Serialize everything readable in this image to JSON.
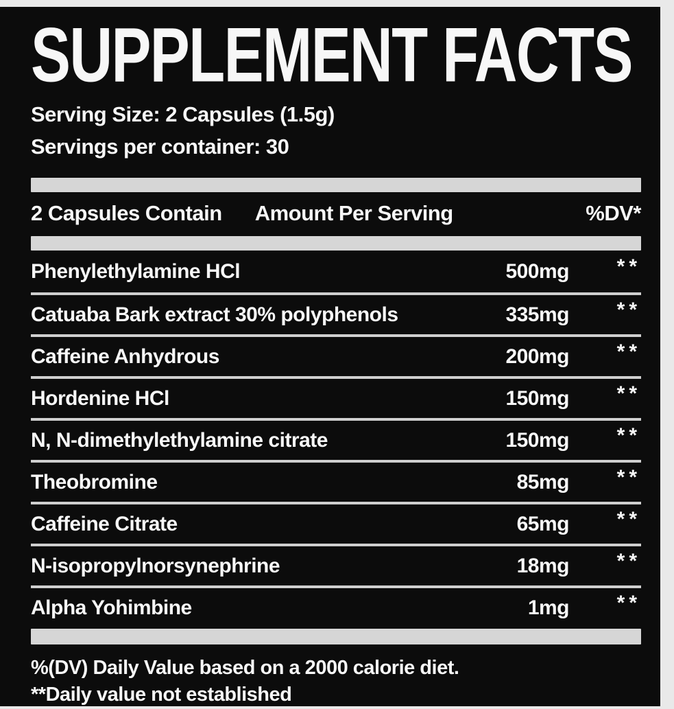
{
  "page": {
    "background_color": "#e9e9e9"
  },
  "label": {
    "background_color": "#0c0c0c",
    "text_color": "#f7f7f7",
    "bar_color": "#d6d6d6",
    "separator_color": "#cfcfcf",
    "title": "SUPPLEMENT FACTS",
    "serving_size": "Serving Size: 2 Capsules (1.5g)",
    "servings_per_container": "Servings per container: 30",
    "table": {
      "header": {
        "contains": "2 Capsules Contain",
        "amount": "Amount Per Serving",
        "dv": "%DV*"
      },
      "rows": [
        {
          "name": "Phenylethylamine HCl",
          "amount": "500mg",
          "dv": "**"
        },
        {
          "name": "Catuaba Bark extract 30% polyphenols",
          "amount": "335mg",
          "dv": "**"
        },
        {
          "name": "Caffeine Anhydrous",
          "amount": "200mg",
          "dv": "**"
        },
        {
          "name": "Hordenine HCl",
          "amount": "150mg",
          "dv": "**"
        },
        {
          "name": "N, N-dimethylethylamine citrate",
          "amount": "150mg",
          "dv": "**"
        },
        {
          "name": "Theobromine",
          "amount": "85mg",
          "dv": "**"
        },
        {
          "name": "Caffeine Citrate",
          "amount": "65mg",
          "dv": "**"
        },
        {
          "name": "N-isopropylnorsynephrine",
          "amount": "18mg",
          "dv": "**"
        },
        {
          "name": "Alpha Yohimbine",
          "amount": "1mg",
          "dv": "**"
        }
      ]
    },
    "footnotes": [
      "%(DV) Daily Value based on a 2000 calorie diet.",
      "**Daily value not established"
    ]
  }
}
